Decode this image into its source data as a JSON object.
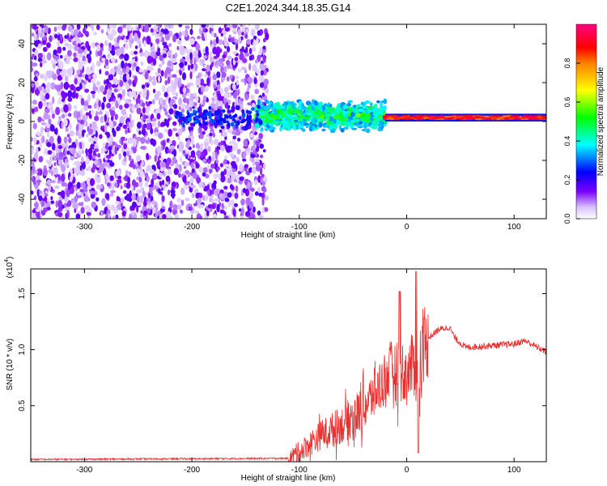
{
  "chart_data": [
    {
      "type": "heatmap",
      "title": "C2E1.2024.344.18.35.G14",
      "xlabel": "Height of straight line (km)",
      "ylabel": "Frequency (Hz)",
      "xlim": [
        -350,
        130
      ],
      "ylim": [
        -50,
        50
      ],
      "xticks": [
        -300,
        -200,
        -100,
        0,
        100
      ],
      "yticks": [
        -40,
        -20,
        0,
        20,
        40
      ],
      "colorbar": {
        "label": "Normalized spectral amplitude",
        "range": [
          0,
          1
        ],
        "ticks": [
          "0.0",
          "0.2",
          "0.4",
          "0.6",
          "0.8"
        ],
        "colors": [
          "#ffffff",
          "#7a00ff",
          "#0000ff",
          "#00ffff",
          "#00ff00",
          "#ffff00",
          "#ff0000",
          "#ff00aa"
        ]
      },
      "regions": [
        {
          "x_range": [
            -350,
            -130
          ],
          "y_range": [
            -50,
            50
          ],
          "description": "scattered purple noise"
        },
        {
          "x_range": [
            -140,
            -20
          ],
          "center_freq": 3,
          "spread": 8,
          "amplitude": [
            0.3,
            0.6
          ]
        },
        {
          "x_range": [
            -20,
            130
          ],
          "center_freq": 2,
          "spread": 2,
          "amplitude": [
            0.8,
            0.95
          ]
        }
      ]
    },
    {
      "type": "line",
      "xlabel": "Height of straight line (km)",
      "ylabel": "SNR (10 * v/v)",
      "y_multiplier_label": "(x10",
      "y_multiplier_exp": "4",
      "xlim": [
        -350,
        130
      ],
      "ylim": [
        0,
        1.72
      ],
      "xticks": [
        -300,
        -200,
        -100,
        0,
        100
      ],
      "yticks": [
        "0.5",
        "1.0",
        "1.5"
      ],
      "color": "#e83030",
      "series_shape": [
        {
          "x": -350,
          "y": 0.02
        },
        {
          "x": -110,
          "y": 0.03
        },
        {
          "x": -100,
          "y": 0.1
        },
        {
          "x": -80,
          "y": 0.25
        },
        {
          "x": -60,
          "y": 0.35
        },
        {
          "x": -40,
          "y": 0.5
        },
        {
          "x": -25,
          "y": 0.7
        },
        {
          "x": -15,
          "y": 0.85
        },
        {
          "x": 0,
          "y": 0.8
        },
        {
          "x": 10,
          "y": 0.95
        },
        {
          "x": 20,
          "y": 1.1
        },
        {
          "x": 30,
          "y": 1.18
        },
        {
          "x": 40,
          "y": 1.2
        },
        {
          "x": 45,
          "y": 1.1
        },
        {
          "x": 55,
          "y": 1.02
        },
        {
          "x": 100,
          "y": 1.05
        },
        {
          "x": 110,
          "y": 1.08
        },
        {
          "x": 130,
          "y": 0.98
        }
      ]
    }
  ]
}
